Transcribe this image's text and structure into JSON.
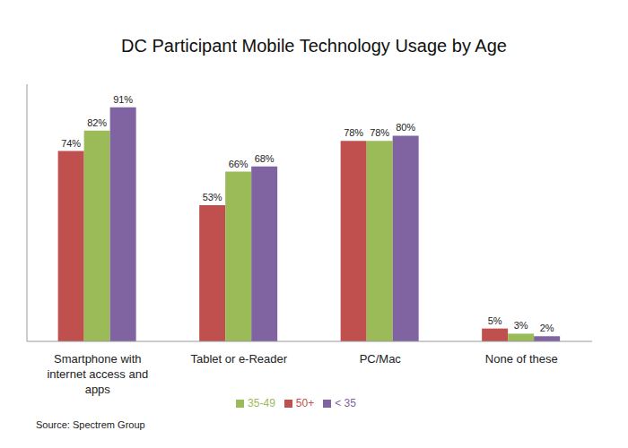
{
  "chart_data": {
    "type": "bar",
    "title": "DC Participant Mobile Technology Usage by Age",
    "categories": [
      "Smartphone with internet access and apps",
      "Tablet or e-Reader",
      "PC/Mac",
      "None of these"
    ],
    "series": [
      {
        "name": "50+",
        "color": "#c0504d",
        "values": [
          74,
          53,
          78,
          5
        ],
        "value_labels": [
          "74%",
          "53%",
          "78%",
          "5%"
        ]
      },
      {
        "name": "35-49",
        "color": "#9bbb59",
        "values": [
          82,
          66,
          78,
          3
        ],
        "value_labels": [
          "82%",
          "66%",
          "78%",
          "3%"
        ]
      },
      {
        "name": "< 35",
        "color": "#8064a2",
        "values": [
          91,
          68,
          80,
          2
        ],
        "value_labels": [
          "91%",
          "68%",
          "80%",
          "2%"
        ]
      }
    ],
    "ylim": [
      0,
      100
    ],
    "data_labels": true,
    "tick_labels": "x",
    "legend": "bottom",
    "annotations": [
      "Source: Spectrem Group"
    ]
  }
}
